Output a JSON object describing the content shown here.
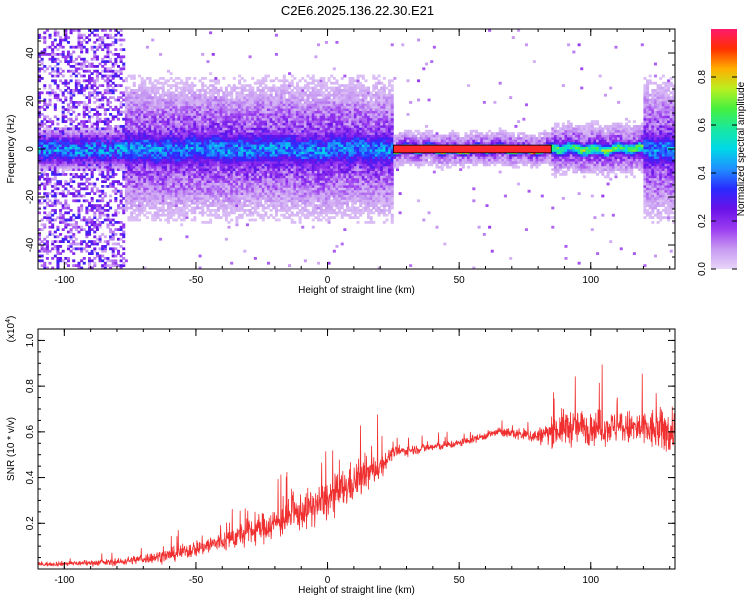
{
  "title": "C2E6.2025.136.22.30.E21",
  "colorbar_label": "Normalized spectral amplitude",
  "colorbar_ticks": [
    "0.0",
    "0.2",
    "0.4",
    "0.6",
    "0.8"
  ],
  "colors": {
    "snr_line": "#f03030",
    "background": "#ffffff",
    "colormap": [
      "#e8d6f8",
      "#c79af2",
      "#9b3cf0",
      "#6a12e8",
      "#2a2aff",
      "#1f8fff",
      "#00d8e8",
      "#19e8a0",
      "#44f040",
      "#b8f020",
      "#ffb000",
      "#ff3000",
      "#ff1a6e"
    ]
  },
  "chart_data": [
    {
      "type": "heatmap",
      "title": "C2E6.2025.136.22.30.E21",
      "xlabel": "Height of straight line (km)",
      "ylabel": "Frequency (Hz)",
      "xlim": [
        -110,
        132
      ],
      "ylim": [
        -50,
        50
      ],
      "x_ticks": [
        "-100",
        "-50",
        "0",
        "50",
        "100"
      ],
      "y_ticks": [
        "-40",
        "-20",
        "0",
        "20",
        "40"
      ],
      "colorbar": {
        "label": "Normalized spectral amplitude",
        "range": [
          0,
          1
        ],
        "ticks": [
          "0.0",
          "0.2",
          "0.4",
          "0.6",
          "0.8"
        ]
      },
      "ridge": {
        "center_freq_hz": 0,
        "segments": [
          {
            "x_range": [
              -110,
              -77
            ],
            "amplitude": 0.25,
            "spread_hz": 45,
            "note": "broadband noise"
          },
          {
            "x_range": [
              -77,
              25
            ],
            "amplitude": 0.45,
            "spread_hz": 8
          },
          {
            "x_range": [
              25,
              85
            ],
            "amplitude": 0.95,
            "spread_hz": 2
          },
          {
            "x_range": [
              85,
              120
            ],
            "amplitude": 0.7,
            "spread_hz": 3
          },
          {
            "x_range": [
              120,
              132
            ],
            "amplitude": 0.45,
            "spread_hz": 8
          }
        ]
      }
    },
    {
      "type": "line",
      "xlabel": "Height of straight line (km)",
      "ylabel": "SNR (10 * v/v)",
      "y_multiplier_label": "(x10",
      "y_multiplier_exp": "4",
      "xlim": [
        -110,
        132
      ],
      "ylim": [
        0,
        1.05
      ],
      "x_ticks": [
        "-100",
        "-50",
        "0",
        "50",
        "100"
      ],
      "y_ticks": [
        "0.2",
        "0.4",
        "0.6",
        "0.8",
        "1.0"
      ],
      "series": [
        {
          "color": "#f03030",
          "envelope": [
            {
              "x": -110,
              "y": 0.02,
              "noise": 0.015
            },
            {
              "x": -80,
              "y": 0.03,
              "noise": 0.025
            },
            {
              "x": -60,
              "y": 0.06,
              "noise": 0.05
            },
            {
              "x": -40,
              "y": 0.12,
              "noise": 0.08
            },
            {
              "x": -20,
              "y": 0.2,
              "noise": 0.12
            },
            {
              "x": 0,
              "y": 0.3,
              "noise": 0.15
            },
            {
              "x": 10,
              "y": 0.38,
              "noise": 0.15
            },
            {
              "x": 20,
              "y": 0.45,
              "noise": 0.1
            },
            {
              "x": 25,
              "y": 0.51,
              "noise": 0.04
            },
            {
              "x": 50,
              "y": 0.55,
              "noise": 0.03
            },
            {
              "x": 65,
              "y": 0.6,
              "noise": 0.03
            },
            {
              "x": 80,
              "y": 0.58,
              "noise": 0.06
            },
            {
              "x": 90,
              "y": 0.62,
              "noise": 0.14
            },
            {
              "x": 110,
              "y": 0.62,
              "noise": 0.12
            },
            {
              "x": 132,
              "y": 0.6,
              "noise": 0.18
            }
          ]
        }
      ]
    }
  ]
}
